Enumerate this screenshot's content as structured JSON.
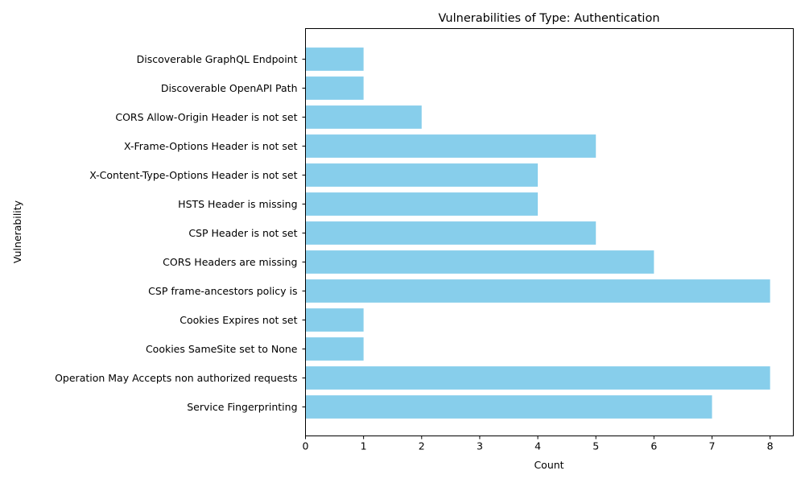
{
  "chart_data": {
    "type": "bar",
    "orientation": "horizontal",
    "title": "Vulnerabilities of Type: Authentication",
    "xlabel": "Count",
    "ylabel": "Vulnerability",
    "categories": [
      "Discoverable GraphQL Endpoint",
      "Discoverable OpenAPI Path",
      "CORS Allow-Origin Header is not set",
      "X-Frame-Options Header is not set",
      "X-Content-Type-Options Header is not set",
      "HSTS Header is missing",
      "CSP Header is not set",
      "CORS Headers are missing",
      "CSP frame-ancestors policy is",
      "Cookies Expires not set",
      "Cookies SameSite set to None",
      "Operation May Accepts non authorized requests",
      "Service Fingerprinting"
    ],
    "values": [
      1,
      1,
      2,
      5,
      4,
      4,
      5,
      6,
      8,
      1,
      1,
      8,
      7
    ],
    "xlim": [
      0,
      8.4
    ],
    "xticks": [
      0,
      1,
      2,
      3,
      4,
      5,
      6,
      7,
      8
    ],
    "grid": false,
    "bar_color": "#87ceeb"
  }
}
